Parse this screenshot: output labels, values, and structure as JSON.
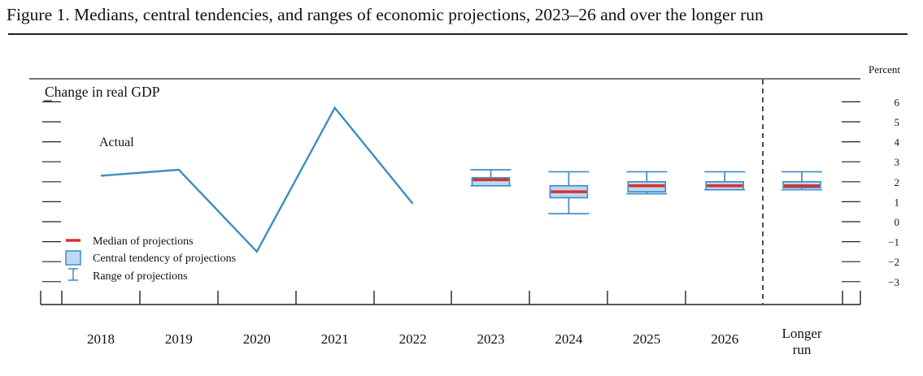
{
  "figure_title": "Figure 1. Medians, central tendencies, and ranges of economic projections, 2023–26 and over the longer run",
  "chart_data": {
    "type": "line",
    "title": "Change in real GDP",
    "ylabel": "Percent",
    "ylim": [
      -3.6,
      6.9
    ],
    "yticks": [
      -3,
      -2,
      -1,
      0,
      1,
      2,
      3,
      4,
      5,
      6
    ],
    "ytick_labels": [
      "−3",
      "−2",
      "−1",
      "0",
      "1",
      "2",
      "3",
      "4",
      "5",
      "6"
    ],
    "categories": [
      "2018",
      "2019",
      "2020",
      "2021",
      "2022",
      "2023",
      "2024",
      "2025",
      "2026",
      "Longer run"
    ],
    "category_labels": [
      [
        "2018"
      ],
      [
        "2019"
      ],
      [
        "2020"
      ],
      [
        "2021"
      ],
      [
        "2022"
      ],
      [
        "2023"
      ],
      [
        "2024"
      ],
      [
        "2025"
      ],
      [
        "2026"
      ],
      [
        "Longer",
        "run"
      ]
    ],
    "actual": {
      "label": "Actual",
      "x": [
        "2018",
        "2019",
        "2020",
        "2021",
        "2022"
      ],
      "values": [
        2.3,
        2.6,
        -1.5,
        5.7,
        0.9
      ]
    },
    "projections": [
      {
        "x": "2023",
        "median": 2.1,
        "ct_low": 1.8,
        "ct_high": 2.2,
        "range_low": 1.8,
        "range_high": 2.6
      },
      {
        "x": "2024",
        "median": 1.5,
        "ct_low": 1.2,
        "ct_high": 1.8,
        "range_low": 0.4,
        "range_high": 2.5
      },
      {
        "x": "2025",
        "median": 1.8,
        "ct_low": 1.5,
        "ct_high": 2.0,
        "range_low": 1.4,
        "range_high": 2.5
      },
      {
        "x": "2026",
        "median": 1.8,
        "ct_low": 1.6,
        "ct_high": 2.0,
        "range_low": 1.6,
        "range_high": 2.5
      },
      {
        "x": "Longer run",
        "median": 1.8,
        "ct_low": 1.7,
        "ct_high": 2.0,
        "range_low": 1.6,
        "range_high": 2.5
      }
    ],
    "legend": {
      "placement": "bottom-left",
      "entries": [
        "Median of projections",
        "Central tendency of projections",
        "Range of projections"
      ]
    },
    "colors": {
      "actual_line": "#3c8dc3",
      "range": "#4a90c8",
      "central_fill": "#bcd8f2",
      "central_edge": "#3c8dc3",
      "median": "#d9302c",
      "axis": "#222222"
    },
    "grid": false
  }
}
